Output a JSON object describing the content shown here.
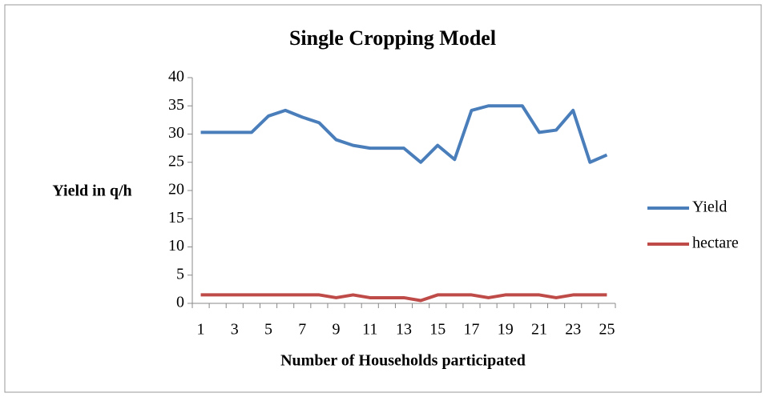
{
  "chart_data": {
    "type": "line",
    "title": "Single Cropping Model",
    "x_label": "Number of Households participated",
    "y_label": "Yield in q/h",
    "categories": [
      1,
      null,
      3,
      null,
      5,
      null,
      7,
      null,
      9,
      null,
      11,
      null,
      13,
      null,
      15,
      null,
      17,
      null,
      19,
      null,
      21,
      null,
      23,
      null,
      25
    ],
    "series": [
      {
        "name": "Yield",
        "color": "#4a7ebb",
        "values": [
          30.3,
          30.3,
          30.3,
          30.3,
          33.2,
          34.2,
          33,
          32,
          29,
          28,
          27.5,
          27.5,
          27.5,
          25,
          28,
          25.5,
          34.2,
          35,
          35,
          35,
          30.3,
          30.7,
          34.2,
          25,
          26.3
        ]
      },
      {
        "name": "hectare",
        "color": "#be4b48",
        "values": [
          1.5,
          1.5,
          1.5,
          1.5,
          1.5,
          1.5,
          1.5,
          1.5,
          1,
          1.5,
          1,
          1,
          1,
          0.5,
          1.5,
          1.5,
          1.5,
          1,
          1.5,
          1.5,
          1.5,
          1,
          1.5,
          1.5,
          1.5
        ]
      }
    ],
    "ylim": [
      0,
      40
    ],
    "yticks": [
      0,
      5,
      10,
      15,
      20,
      25,
      30,
      35,
      40
    ],
    "grid": false,
    "legend": "right"
  }
}
